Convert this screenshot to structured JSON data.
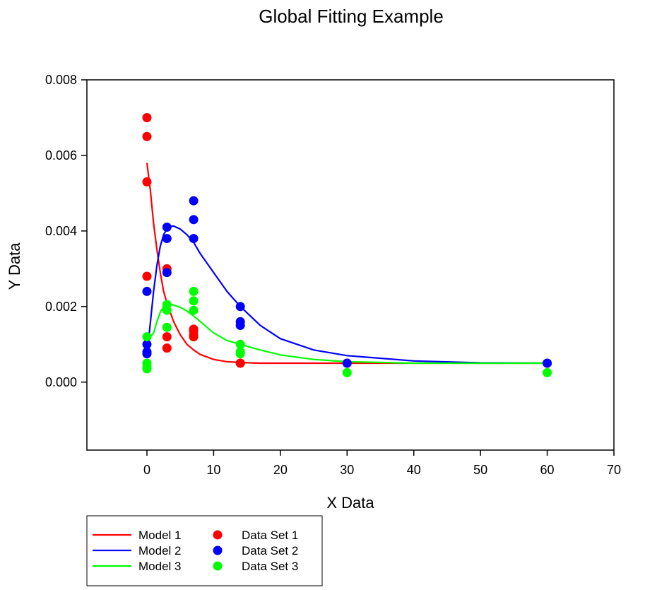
{
  "chart_data": {
    "type": "scatter",
    "title": "Global Fitting Example",
    "xlabel": "X Data",
    "ylabel": "Y Data",
    "xlim": [
      -9,
      70
    ],
    "ylim": [
      -0.0018,
      0.008
    ],
    "xticks": [
      0,
      10,
      20,
      30,
      40,
      50,
      60,
      70
    ],
    "xtick_labels": [
      "0",
      "10",
      "20",
      "30",
      "40",
      "50",
      "60",
      "70"
    ],
    "yticks": [
      0,
      0.002,
      0.004,
      0.006,
      0.008
    ],
    "ytick_labels": [
      "0.000",
      "0.002",
      "0.004",
      "0.006",
      "0.008"
    ],
    "grid": false,
    "legend_position": "bottom-left, below plot",
    "lines": [
      {
        "name": "Model 1",
        "color": "#ff0000",
        "x": [
          0,
          0.5,
          1,
          1.5,
          2,
          2.5,
          3,
          4,
          5,
          6,
          7,
          8,
          10,
          12,
          14,
          17,
          20,
          25,
          30,
          40,
          50,
          60
        ],
        "y": [
          0.0058,
          0.0051,
          0.0042,
          0.0035,
          0.0029,
          0.0024,
          0.0021,
          0.0016,
          0.00125,
          0.001,
          0.00085,
          0.00073,
          0.0006,
          0.00054,
          0.00052,
          0.0005,
          0.0005,
          0.0005,
          0.0005,
          0.0005,
          0.0005,
          0.0005
        ]
      },
      {
        "name": "Model 2",
        "color": "#0000ff",
        "x": [
          0.3,
          1,
          1.5,
          2,
          2.5,
          3,
          3.5,
          4,
          5,
          6,
          7,
          8,
          10,
          12,
          14,
          17,
          20,
          25,
          30,
          40,
          50,
          60
        ],
        "y": [
          0.0012,
          0.0024,
          0.0031,
          0.0036,
          0.0039,
          0.00405,
          0.00412,
          0.00413,
          0.00405,
          0.0039,
          0.0037,
          0.0034,
          0.0029,
          0.0024,
          0.002,
          0.0015,
          0.00115,
          0.00085,
          0.0007,
          0.00056,
          0.00051,
          0.0005
        ]
      },
      {
        "name": "Model 3",
        "color": "#00ff00",
        "x": [
          0.3,
          1,
          1.5,
          2,
          2.5,
          3,
          3.5,
          4,
          5,
          6,
          7,
          8,
          10,
          12,
          14,
          17,
          20,
          25,
          30,
          40,
          50,
          60
        ],
        "y": [
          0.00115,
          0.0013,
          0.0016,
          0.00185,
          0.002,
          0.00205,
          0.00206,
          0.00204,
          0.00198,
          0.00188,
          0.00175,
          0.0016,
          0.0013,
          0.0011,
          0.001,
          0.00085,
          0.00072,
          0.0006,
          0.00054,
          0.0005,
          0.0005,
          0.0005
        ]
      }
    ],
    "series": [
      {
        "name": "Data Set 1",
        "color": "#ff0000",
        "x": [
          0,
          0,
          0,
          0,
          3,
          3,
          3,
          7,
          7,
          7,
          7,
          14,
          14,
          30,
          60
        ],
        "y": [
          0.007,
          0.0065,
          0.0053,
          0.0028,
          0.003,
          0.0012,
          0.0009,
          0.0014,
          0.00135,
          0.00125,
          0.0012,
          0.0005,
          0.0005,
          0.0005,
          0.0005
        ]
      },
      {
        "name": "Data Set 2",
        "color": "#0000ff",
        "x": [
          0,
          0,
          0,
          0,
          3,
          3,
          3,
          7,
          7,
          7,
          14,
          14,
          14,
          30,
          60
        ],
        "y": [
          0.0024,
          0.001,
          0.0008,
          0.00075,
          0.0041,
          0.0038,
          0.0029,
          0.0048,
          0.0043,
          0.0038,
          0.002,
          0.0016,
          0.0015,
          0.0005,
          0.0005
        ]
      },
      {
        "name": "Data Set 3",
        "color": "#00ff00",
        "x": [
          0,
          0,
          0,
          0,
          3,
          3,
          3,
          7,
          7,
          7,
          14,
          14,
          14,
          30,
          60
        ],
        "y": [
          0.0012,
          0.0005,
          0.0004,
          0.00035,
          0.00205,
          0.0019,
          0.00145,
          0.0024,
          0.00215,
          0.0019,
          0.001,
          0.0008,
          0.00075,
          0.00025,
          0.00025
        ]
      }
    ]
  }
}
